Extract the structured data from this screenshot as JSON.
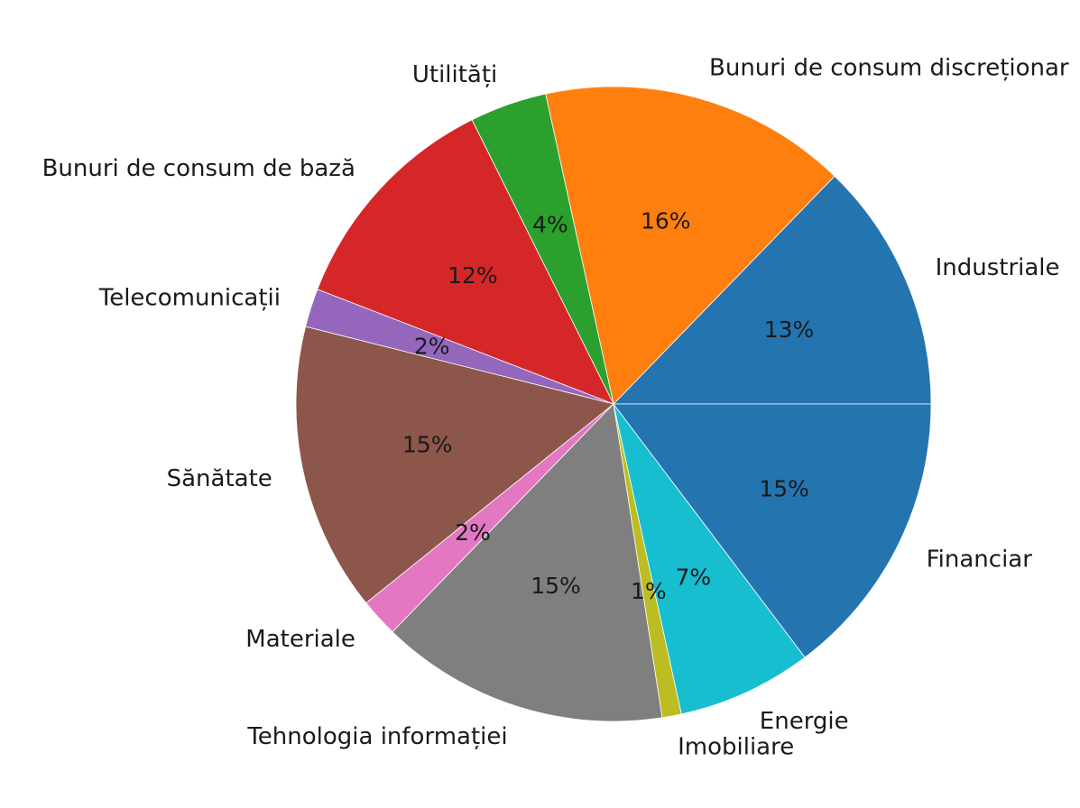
{
  "chart_data": {
    "type": "pie",
    "title": "",
    "start_angle_deg": 0,
    "direction": "counterclockwise",
    "slices": [
      {
        "label": "Industriale",
        "value": 13,
        "pct_label": "13%",
        "color": "#2474b0"
      },
      {
        "label": "Bunuri de consum discreționar",
        "value": 16,
        "pct_label": "16%",
        "color": "#ff7f0e"
      },
      {
        "label": "Utilități",
        "value": 4,
        "pct_label": "4%",
        "color": "#2ca02c"
      },
      {
        "label": "Bunuri de consum de bază",
        "value": 12,
        "pct_label": "12%",
        "color": "#d62728"
      },
      {
        "label": "Telecomunicații",
        "value": 2,
        "pct_label": "2%",
        "color": "#9467bd"
      },
      {
        "label": "Sănătate",
        "value": 15,
        "pct_label": "15%",
        "color": "#8c564b"
      },
      {
        "label": "Materiale",
        "value": 2,
        "pct_label": "2%",
        "color": "#e377c2"
      },
      {
        "label": "Tehnologia informației",
        "value": 15,
        "pct_label": "15%",
        "color": "#7f7f7f"
      },
      {
        "label": "Imobiliare",
        "value": 1,
        "pct_label": "1%",
        "color": "#bcbd22"
      },
      {
        "label": "Energie",
        "value": 7,
        "pct_label": "7%",
        "color": "#17becf"
      },
      {
        "label": "Financiar",
        "value": 15,
        "pct_label": "15%",
        "color": "#2474b0"
      }
    ]
  }
}
